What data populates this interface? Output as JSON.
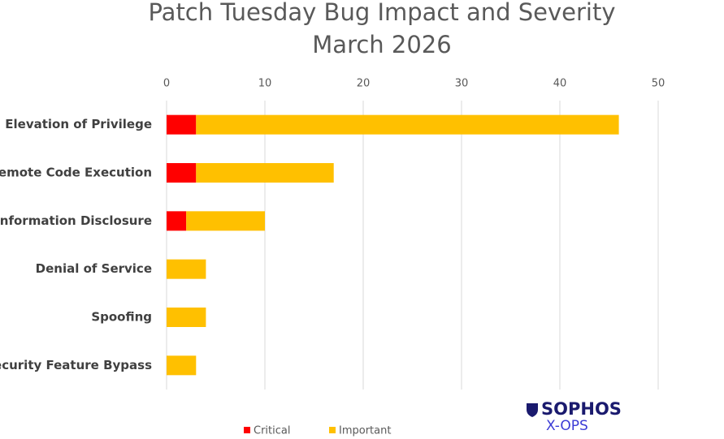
{
  "chart_data": {
    "type": "stacked-barh",
    "title": "Patch Tuesday Bug Impact and Severity",
    "subtitle": "March 2026",
    "categories": [
      "Elevation of Privilege",
      "Remote Code Execution",
      "Information Disclosure",
      "Denial of Service",
      "Spoofing",
      "Security Feature Bypass"
    ],
    "series": [
      {
        "name": "Critical",
        "color": "#ff0000",
        "values": [
          3,
          3,
          2,
          0,
          0,
          0
        ]
      },
      {
        "name": "Important",
        "color": "#ffc000",
        "values": [
          43,
          14,
          8,
          4,
          4,
          3
        ]
      }
    ],
    "xlim": [
      0,
      50
    ],
    "xticks": [
      0,
      10,
      20,
      30,
      40,
      50
    ],
    "grid": true,
    "legend": "bottom"
  },
  "branding": {
    "name": "SOPHOS",
    "sub": "X-OPS"
  }
}
